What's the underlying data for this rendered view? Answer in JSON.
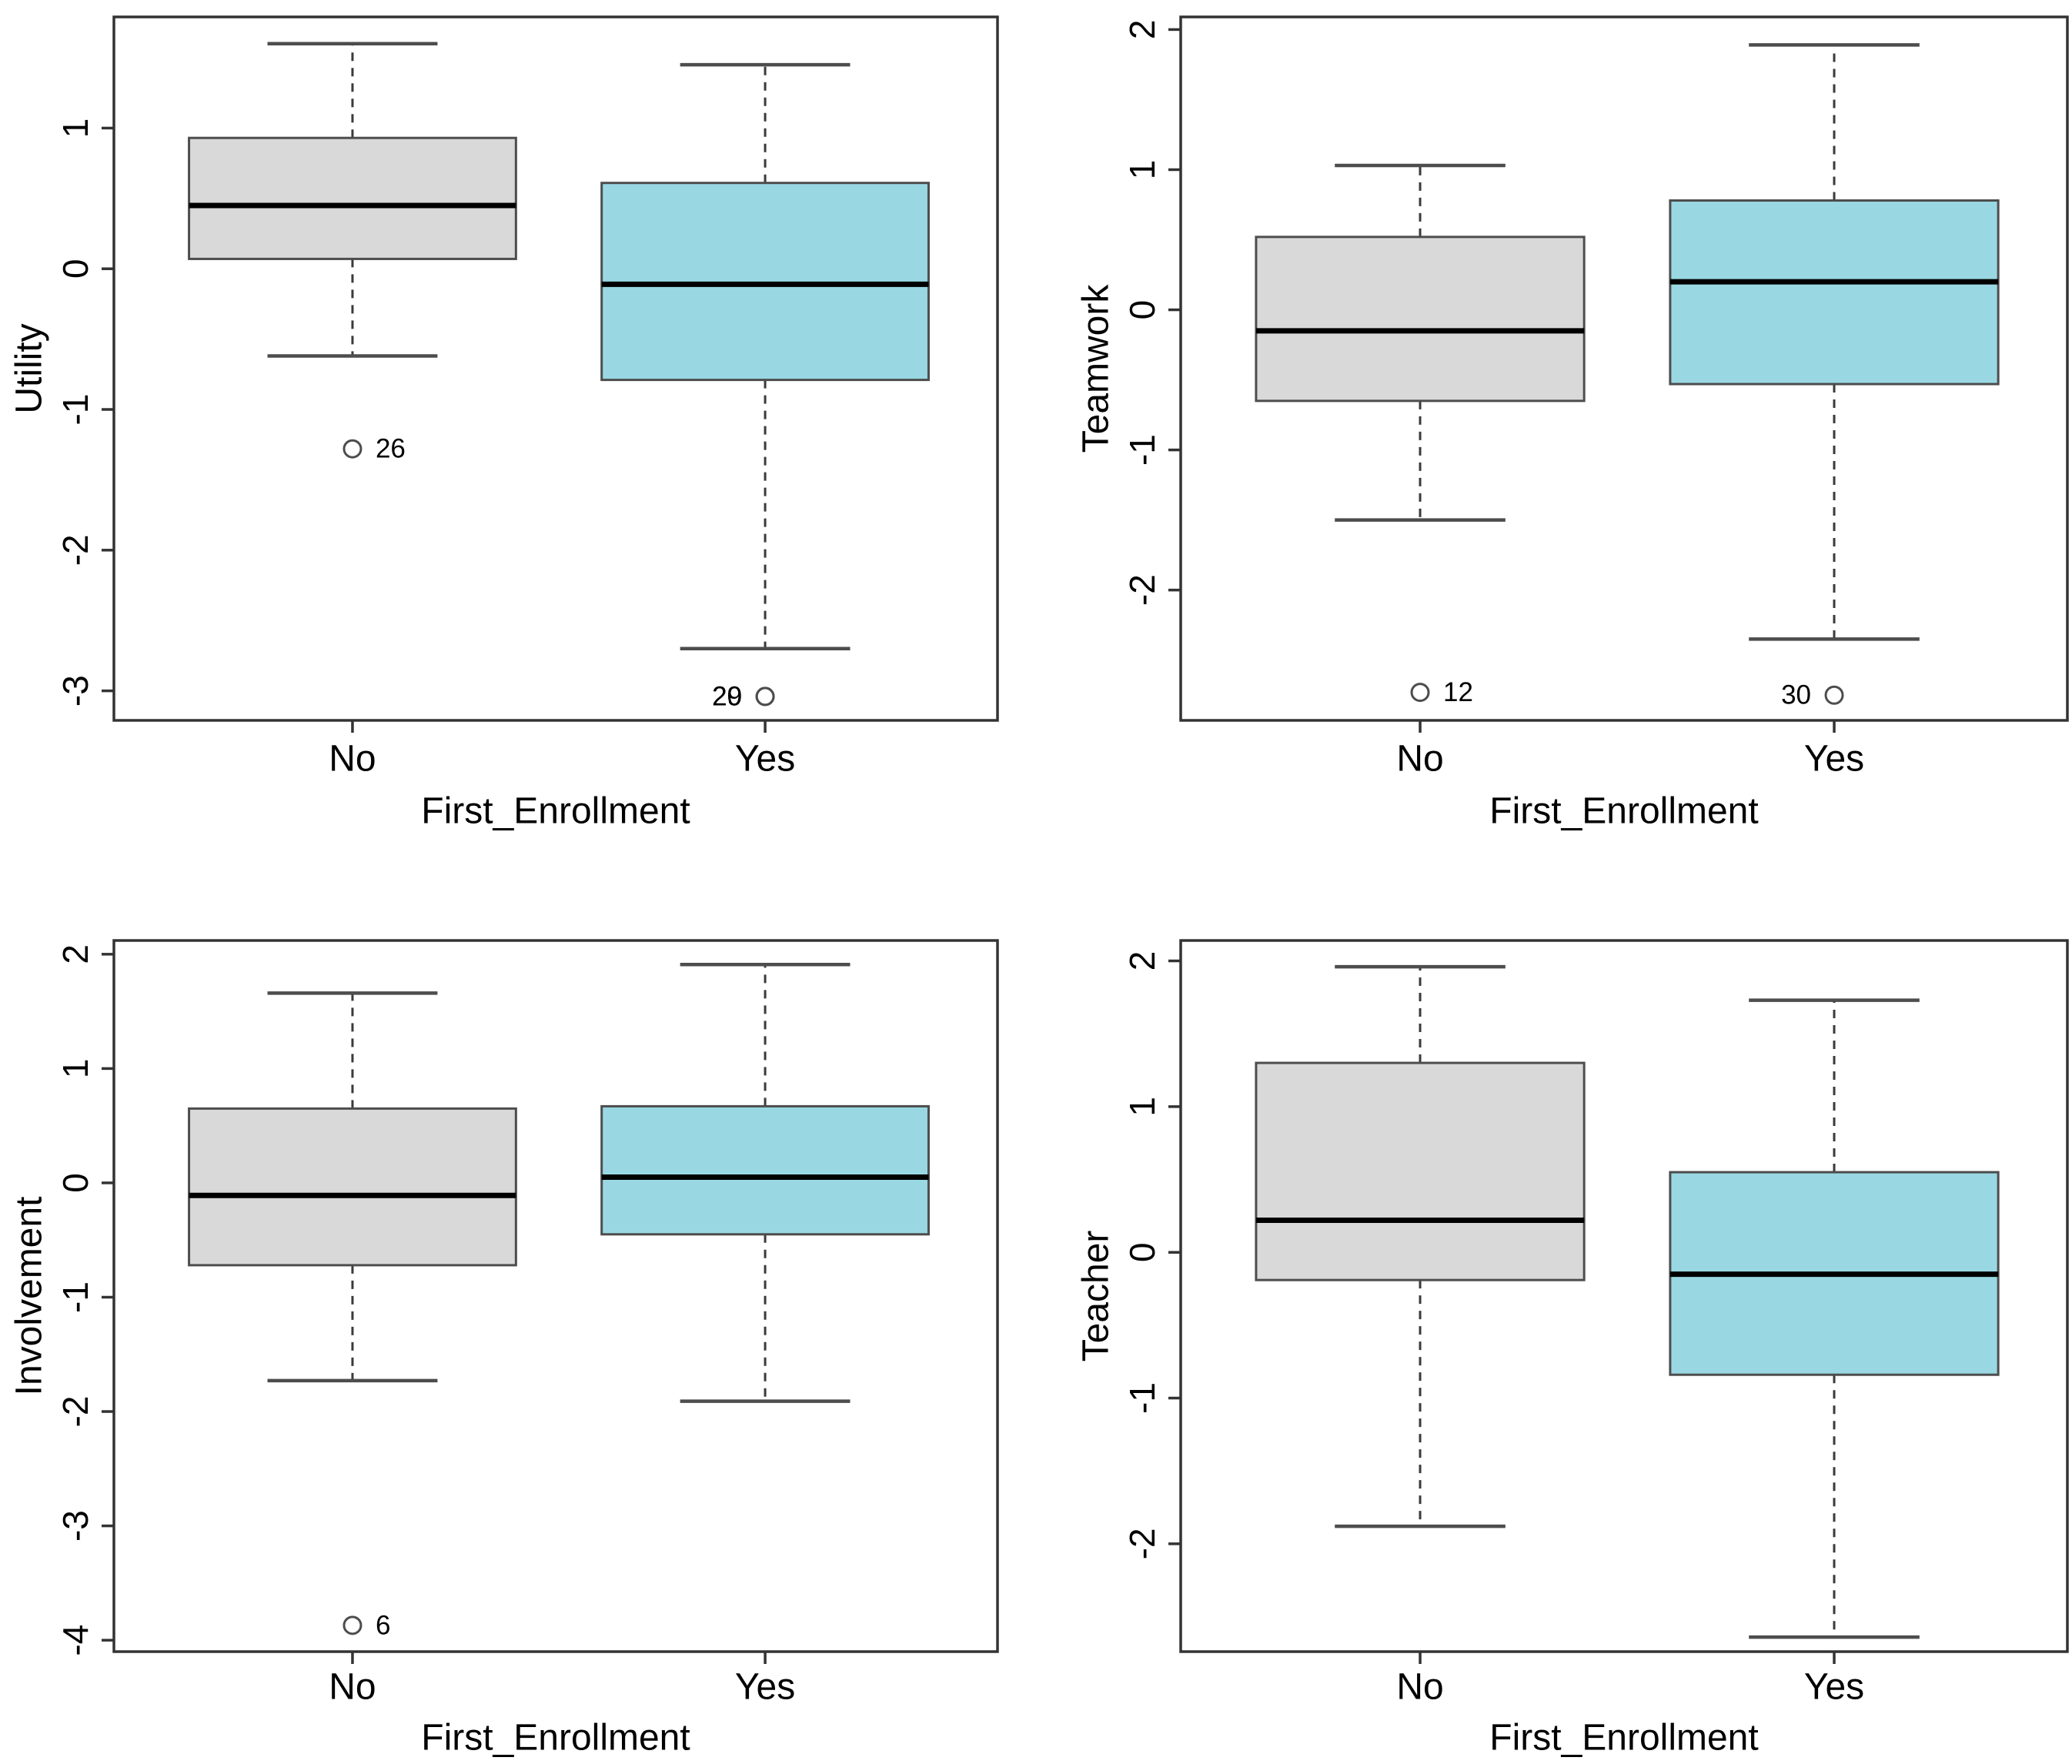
{
  "figure": {
    "description": "Four R-style boxplots comparing No vs Yes groups of First_Enrollment",
    "background": "#ffffff"
  },
  "chart_data": {
    "type": "boxplot",
    "grid": "2 rows x 2 columns",
    "categories": [
      "No",
      "Yes"
    ],
    "legend": "none",
    "colors": {
      "no_box_fill": "#d9d9d9",
      "yes_box_fill": "#99d8e3",
      "box_border": "#4d4d4d",
      "median_line": "#000000",
      "whisker_line": "#3a3a3a",
      "plot_border": "#333333",
      "text": "#000000"
    },
    "panels": [
      {
        "id": "utility",
        "ylabel": "Utility",
        "xlabel": "First_Enrollment",
        "yticks": [
          1,
          0,
          -1,
          -2,
          -3
        ],
        "ylim": [
          -3.21,
          1.79
        ],
        "groups": [
          {
            "category": "No",
            "fill": "#d9d9d9",
            "whisker_low": -0.62,
            "q1": 0.07,
            "median": 0.45,
            "q3": 0.93,
            "whisker_high": 1.6,
            "outliers": [
              {
                "value": -1.28,
                "label": "26",
                "label_side": "right"
              }
            ]
          },
          {
            "category": "Yes",
            "fill": "#99d8e3",
            "whisker_low": -2.7,
            "q1": -0.79,
            "median": -0.11,
            "q3": 0.61,
            "whisker_high": 1.45,
            "outliers": [
              {
                "value": -3.04,
                "label": "20",
                "label_side": "left"
              },
              {
                "value": -3.04,
                "label": "29",
                "label_side": "left"
              }
            ]
          }
        ]
      },
      {
        "id": "teamwork",
        "ylabel": "Teamwork",
        "xlabel": "First_Enrollment",
        "yticks": [
          2,
          1,
          0,
          -1,
          -2
        ],
        "ylim": [
          -2.93,
          2.09
        ],
        "groups": [
          {
            "category": "No",
            "fill": "#d9d9d9",
            "whisker_low": -1.5,
            "q1": -0.65,
            "median": -0.15,
            "q3": 0.52,
            "whisker_high": 1.03,
            "outliers": [
              {
                "value": -2.73,
                "label": "12",
                "label_side": "right"
              }
            ]
          },
          {
            "category": "Yes",
            "fill": "#99d8e3",
            "whisker_low": -2.35,
            "q1": -0.53,
            "median": 0.2,
            "q3": 0.78,
            "whisker_high": 1.89,
            "outliers": [
              {
                "value": -2.75,
                "label": "30",
                "label_side": "left"
              }
            ]
          }
        ]
      },
      {
        "id": "involvement",
        "ylabel": "Involvement",
        "xlabel": "First_Enrollment",
        "yticks": [
          2,
          1,
          0,
          -1,
          -2,
          -3,
          -4
        ],
        "ylim": [
          -4.1,
          2.12
        ],
        "groups": [
          {
            "category": "No",
            "fill": "#d9d9d9",
            "whisker_low": -1.73,
            "q1": -0.72,
            "median": -0.11,
            "q3": 0.65,
            "whisker_high": 1.66,
            "outliers": [
              {
                "value": -3.87,
                "label": "6",
                "label_side": "right"
              }
            ]
          },
          {
            "category": "Yes",
            "fill": "#99d8e3",
            "whisker_low": -1.91,
            "q1": -0.45,
            "median": 0.05,
            "q3": 0.67,
            "whisker_high": 1.91,
            "outliers": []
          }
        ]
      },
      {
        "id": "teacher",
        "ylabel": "Teacher",
        "xlabel": "First_Enrollment",
        "yticks": [
          2,
          1,
          0,
          -1,
          -2
        ],
        "ylim": [
          -2.74,
          2.14
        ],
        "groups": [
          {
            "category": "No",
            "fill": "#d9d9d9",
            "whisker_low": -1.88,
            "q1": -0.19,
            "median": 0.22,
            "q3": 1.3,
            "whisker_high": 1.96,
            "outliers": []
          },
          {
            "category": "Yes",
            "fill": "#99d8e3",
            "whisker_low": -2.64,
            "q1": -0.84,
            "median": -0.15,
            "q3": 0.55,
            "whisker_high": 1.73,
            "outliers": []
          }
        ]
      }
    ]
  }
}
